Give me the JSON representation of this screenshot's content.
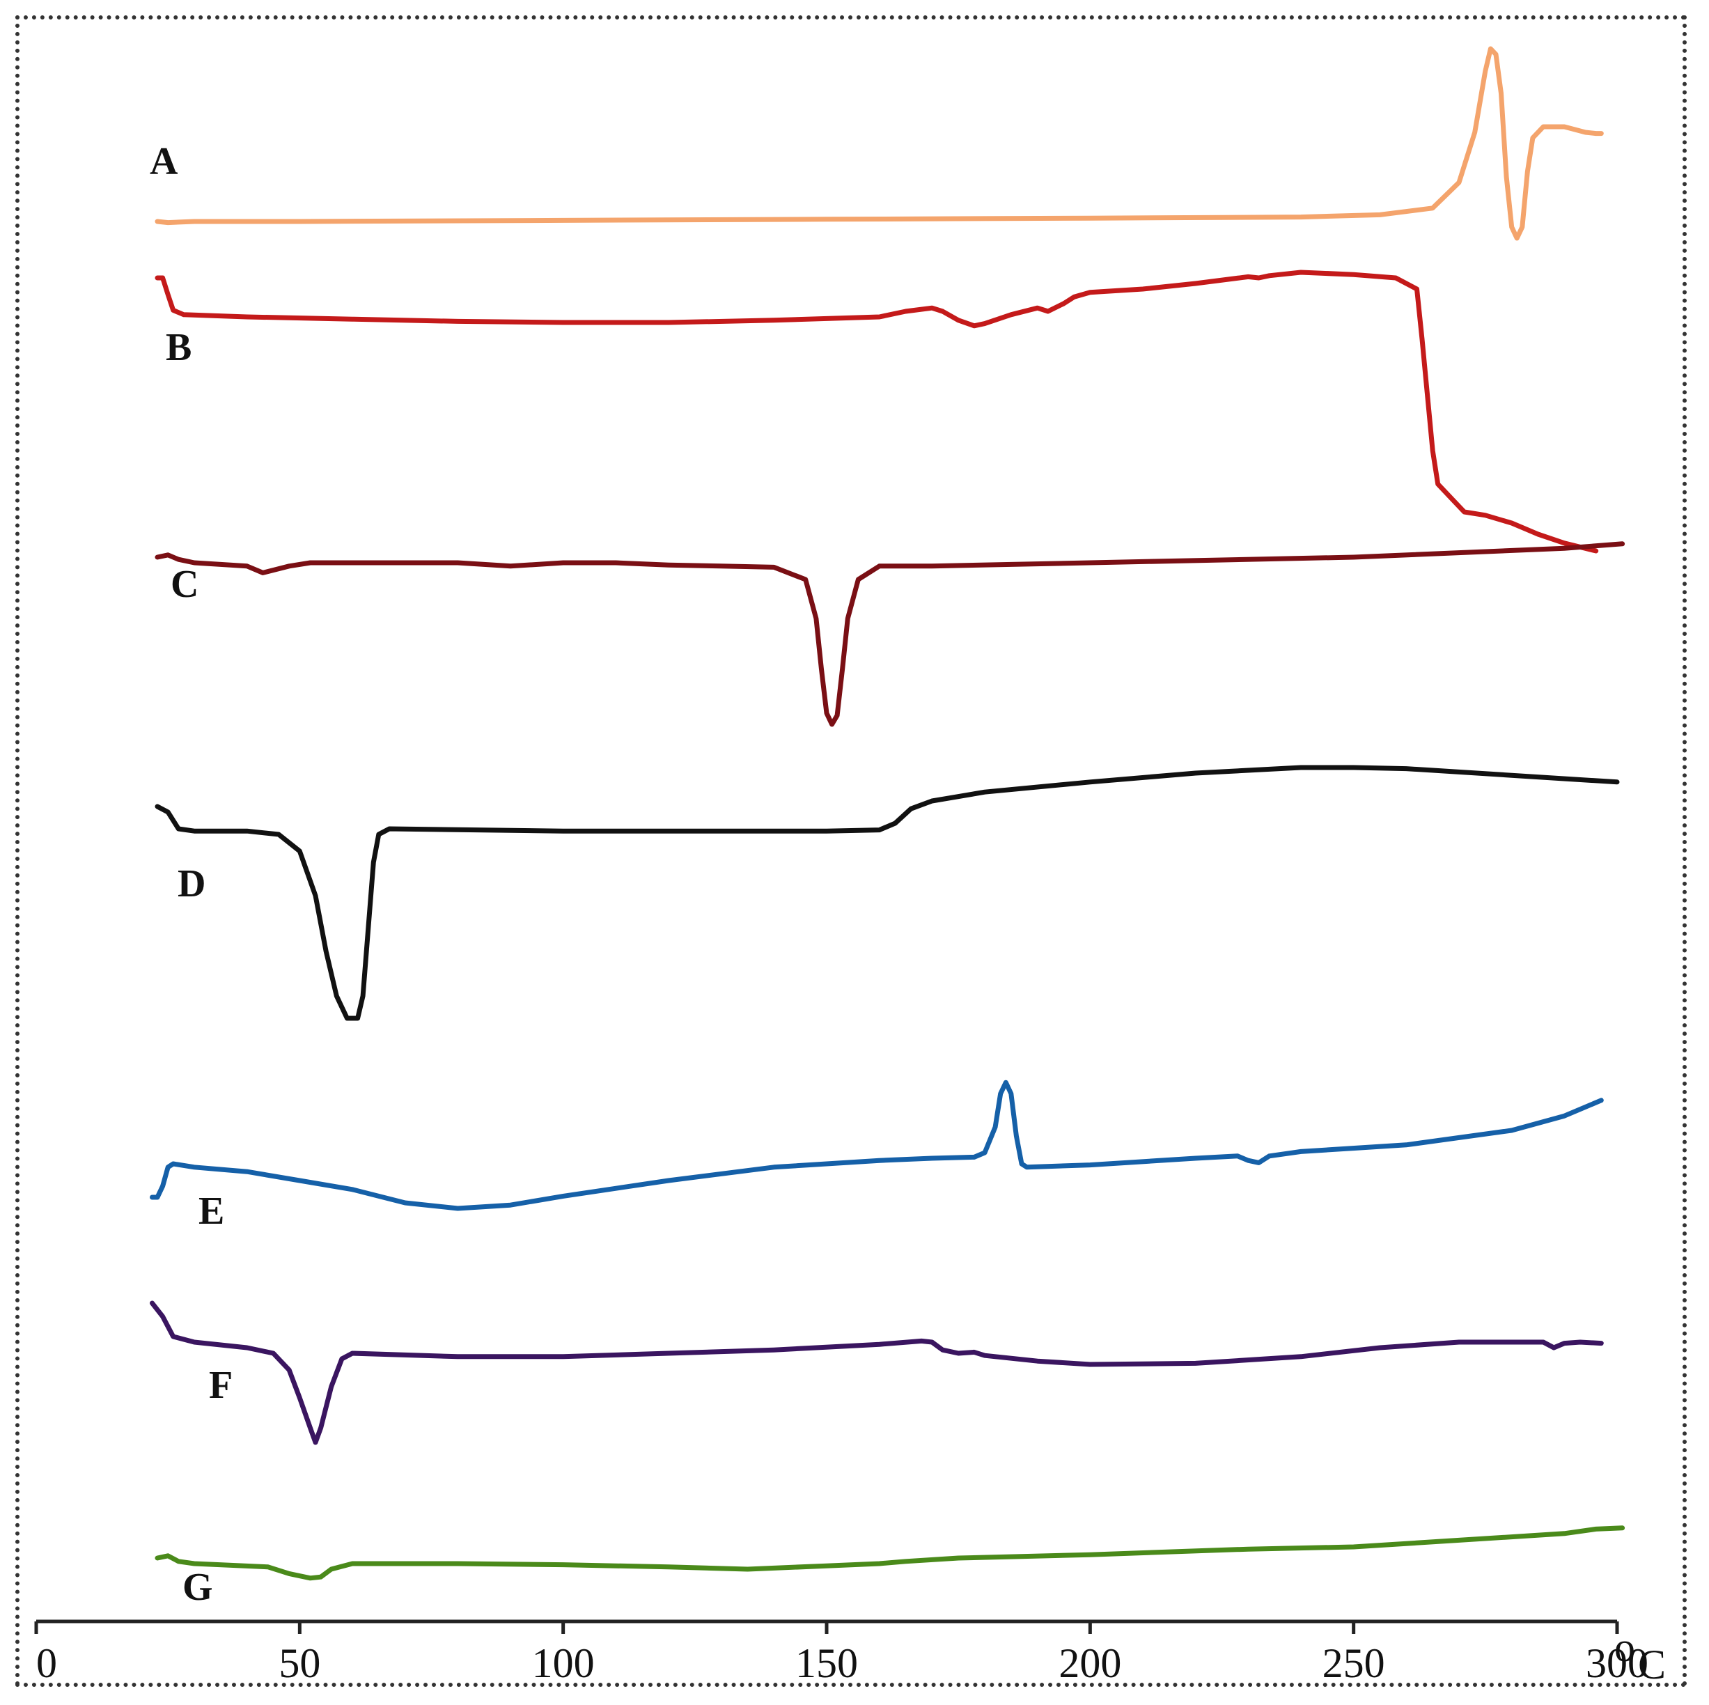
{
  "chart_data": {
    "type": "line",
    "title": "",
    "xlabel": "°C",
    "ylabel": "",
    "xlim": [
      0,
      300
    ],
    "xticks": [
      0,
      50,
      100,
      150,
      200,
      250,
      300
    ],
    "xtick_labels": [
      "0",
      "50",
      "100",
      "150",
      "200",
      "250",
      "300"
    ],
    "unit_degree": "o",
    "unit_letter": "C",
    "grid": false,
    "legend": "none (curves labeled inline)",
    "series": [
      {
        "name": "A",
        "color": "#F4A46C",
        "offset": 0,
        "points": [
          [
            23,
            0
          ],
          [
            25,
            -1
          ],
          [
            30,
            0
          ],
          [
            50,
            0
          ],
          [
            100,
            1
          ],
          [
            150,
            2
          ],
          [
            200,
            3
          ],
          [
            240,
            4
          ],
          [
            255,
            6
          ],
          [
            265,
            12
          ],
          [
            270,
            35
          ],
          [
            273,
            80
          ],
          [
            275,
            135
          ],
          [
            276,
            155
          ],
          [
            277,
            150
          ],
          [
            278,
            115
          ],
          [
            279,
            40
          ],
          [
            280,
            -5
          ],
          [
            281,
            -15
          ],
          [
            282,
            -5
          ],
          [
            283,
            45
          ],
          [
            284,
            75
          ],
          [
            286,
            85
          ],
          [
            290,
            85
          ],
          [
            294,
            80
          ],
          [
            296,
            79
          ],
          [
            297,
            79
          ]
        ]
      },
      {
        "name": "B",
        "color": "#C41A1A",
        "offset": 0,
        "points": [
          [
            23,
            35
          ],
          [
            24,
            35
          ],
          [
            25,
            20
          ],
          [
            26,
            6
          ],
          [
            28,
            2
          ],
          [
            40,
            0
          ],
          [
            60,
            -2
          ],
          [
            80,
            -4
          ],
          [
            100,
            -5
          ],
          [
            120,
            -5
          ],
          [
            140,
            -3
          ],
          [
            160,
            0
          ],
          [
            165,
            5
          ],
          [
            170,
            8
          ],
          [
            172,
            5
          ],
          [
            175,
            -3
          ],
          [
            178,
            -8
          ],
          [
            180,
            -6
          ],
          [
            185,
            2
          ],
          [
            190,
            8
          ],
          [
            192,
            5
          ],
          [
            195,
            12
          ],
          [
            197,
            18
          ],
          [
            200,
            22
          ],
          [
            210,
            25
          ],
          [
            220,
            30
          ],
          [
            230,
            36
          ],
          [
            232,
            35
          ],
          [
            234,
            37
          ],
          [
            240,
            40
          ],
          [
            250,
            38
          ],
          [
            258,
            35
          ],
          [
            262,
            25
          ],
          [
            263,
            -20
          ],
          [
            264,
            -70
          ],
          [
            265,
            -120
          ],
          [
            266,
            -150
          ],
          [
            269,
            -165
          ],
          [
            271,
            -175
          ],
          [
            275,
            -178
          ],
          [
            280,
            -185
          ],
          [
            285,
            -195
          ],
          [
            290,
            -203
          ],
          [
            296,
            -210
          ]
        ]
      },
      {
        "name": "C",
        "color": "#7A0F14",
        "offset": 0,
        "points": [
          [
            23,
            0
          ],
          [
            25,
            2
          ],
          [
            27,
            -2
          ],
          [
            30,
            -5
          ],
          [
            40,
            -8
          ],
          [
            43,
            -14
          ],
          [
            48,
            -8
          ],
          [
            52,
            -5
          ],
          [
            80,
            -5
          ],
          [
            90,
            -8
          ],
          [
            100,
            -5
          ],
          [
            110,
            -5
          ],
          [
            120,
            -7
          ],
          [
            130,
            -8
          ],
          [
            140,
            -9
          ],
          [
            146,
            -20
          ],
          [
            148,
            -55
          ],
          [
            149,
            -100
          ],
          [
            150,
            -140
          ],
          [
            151,
            -150
          ],
          [
            152,
            -142
          ],
          [
            153,
            -100
          ],
          [
            154,
            -55
          ],
          [
            156,
            -20
          ],
          [
            160,
            -8
          ],
          [
            170,
            -8
          ],
          [
            200,
            -5
          ],
          [
            250,
            0
          ],
          [
            290,
            8
          ],
          [
            301,
            12
          ]
        ]
      },
      {
        "name": "D",
        "color": "#111111",
        "offset": 0,
        "points": [
          [
            23,
            20
          ],
          [
            25,
            15
          ],
          [
            27,
            0
          ],
          [
            30,
            -2
          ],
          [
            40,
            -2
          ],
          [
            46,
            -5
          ],
          [
            50,
            -20
          ],
          [
            53,
            -60
          ],
          [
            55,
            -110
          ],
          [
            57,
            -150
          ],
          [
            59,
            -170
          ],
          [
            61,
            -170
          ],
          [
            62,
            -150
          ],
          [
            63,
            -90
          ],
          [
            64,
            -30
          ],
          [
            65,
            -5
          ],
          [
            67,
            0
          ],
          [
            100,
            -2
          ],
          [
            150,
            -2
          ],
          [
            160,
            -1
          ],
          [
            163,
            5
          ],
          [
            166,
            18
          ],
          [
            170,
            25
          ],
          [
            180,
            33
          ],
          [
            200,
            42
          ],
          [
            220,
            50
          ],
          [
            240,
            55
          ],
          [
            250,
            55
          ],
          [
            260,
            54
          ],
          [
            280,
            48
          ],
          [
            300,
            42
          ]
        ]
      },
      {
        "name": "E",
        "color": "#1560A8",
        "offset": 0,
        "points": [
          [
            22,
            -15
          ],
          [
            23,
            -15
          ],
          [
            24,
            -5
          ],
          [
            25,
            12
          ],
          [
            26,
            15
          ],
          [
            30,
            12
          ],
          [
            40,
            8
          ],
          [
            50,
            0
          ],
          [
            60,
            -8
          ],
          [
            70,
            -20
          ],
          [
            80,
            -25
          ],
          [
            90,
            -22
          ],
          [
            100,
            -14
          ],
          [
            120,
            0
          ],
          [
            140,
            12
          ],
          [
            160,
            18
          ],
          [
            170,
            20
          ],
          [
            178,
            21
          ],
          [
            180,
            25
          ],
          [
            182,
            48
          ],
          [
            183,
            78
          ],
          [
            184,
            88
          ],
          [
            185,
            78
          ],
          [
            186,
            40
          ],
          [
            187,
            15
          ],
          [
            188,
            12
          ],
          [
            200,
            14
          ],
          [
            220,
            20
          ],
          [
            228,
            22
          ],
          [
            230,
            18
          ],
          [
            232,
            16
          ],
          [
            234,
            22
          ],
          [
            240,
            26
          ],
          [
            260,
            32
          ],
          [
            280,
            45
          ],
          [
            290,
            58
          ],
          [
            297,
            72
          ]
        ]
      },
      {
        "name": "F",
        "color": "#3A1560",
        "offset": 0,
        "points": [
          [
            22,
            40
          ],
          [
            24,
            28
          ],
          [
            26,
            10
          ],
          [
            30,
            5
          ],
          [
            40,
            0
          ],
          [
            45,
            -5
          ],
          [
            48,
            -20
          ],
          [
            50,
            -45
          ],
          [
            52,
            -72
          ],
          [
            53,
            -85
          ],
          [
            54,
            -72
          ],
          [
            56,
            -35
          ],
          [
            58,
            -10
          ],
          [
            60,
            -5
          ],
          [
            80,
            -8
          ],
          [
            100,
            -8
          ],
          [
            120,
            -5
          ],
          [
            140,
            -2
          ],
          [
            160,
            3
          ],
          [
            168,
            6
          ],
          [
            170,
            5
          ],
          [
            172,
            -2
          ],
          [
            175,
            -5
          ],
          [
            178,
            -4
          ],
          [
            180,
            -7
          ],
          [
            190,
            -12
          ],
          [
            200,
            -15
          ],
          [
            220,
            -14
          ],
          [
            240,
            -8
          ],
          [
            255,
            0
          ],
          [
            270,
            5
          ],
          [
            280,
            5
          ],
          [
            286,
            5
          ],
          [
            288,
            0
          ],
          [
            290,
            4
          ],
          [
            293,
            5
          ],
          [
            297,
            4
          ]
        ]
      },
      {
        "name": "G",
        "color": "#4A8A1A",
        "offset": 0,
        "points": [
          [
            23,
            0
          ],
          [
            25,
            2
          ],
          [
            27,
            -3
          ],
          [
            30,
            -5
          ],
          [
            44,
            -8
          ],
          [
            48,
            -14
          ],
          [
            52,
            -18
          ],
          [
            54,
            -17
          ],
          [
            56,
            -10
          ],
          [
            60,
            -5
          ],
          [
            80,
            -5
          ],
          [
            100,
            -6
          ],
          [
            120,
            -8
          ],
          [
            135,
            -10
          ],
          [
            150,
            -7
          ],
          [
            160,
            -5
          ],
          [
            165,
            -3
          ],
          [
            175,
            0
          ],
          [
            200,
            3
          ],
          [
            230,
            8
          ],
          [
            250,
            10
          ],
          [
            270,
            16
          ],
          [
            290,
            22
          ],
          [
            296,
            26
          ],
          [
            301,
            27
          ]
        ]
      }
    ],
    "labels": [
      "A",
      "B",
      "C",
      "D",
      "E",
      "F",
      "G"
    ]
  }
}
